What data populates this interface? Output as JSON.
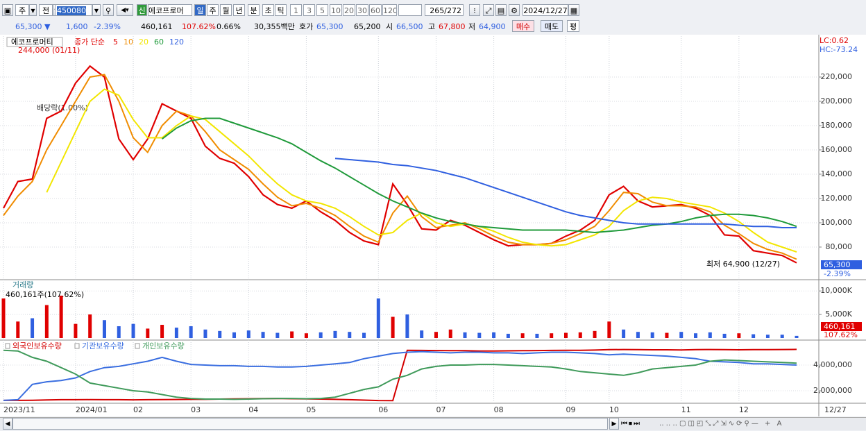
{
  "toolbar": {
    "period_unit": "주",
    "mode": "전",
    "code": "450080",
    "badge": "신",
    "name": "에코프로머",
    "periods": [
      "일",
      "주",
      "월",
      "년",
      "분",
      "초",
      "틱"
    ],
    "intervals": [
      "1",
      "3",
      "5",
      "10",
      "20",
      "30",
      "60",
      "120"
    ],
    "count": "265",
    "total": "/272",
    "date": "2024/12/27"
  },
  "quote": {
    "price": "65,300 ▼",
    "change": "1,600",
    "change_pct": "-2.39%",
    "volume": "460,161",
    "volume_ratio": "107.62%",
    "turnover": "0.66%",
    "amount": "30,355백만",
    "ask_label": "호가",
    "ask": "65,300",
    "bid": "65,200",
    "open_label": "시",
    "open": "66,500",
    "high_label": "고",
    "high": "67,800",
    "low_label": "저",
    "low": "64,900",
    "buy": "매수",
    "sell": "매도",
    "avg": "평"
  },
  "chart_data": [
    {
      "type": "line",
      "title": "에코프로머티",
      "subtitle": "종가 단순",
      "last_date": "12/27",
      "categories": [
        "2023/11",
        null,
        null,
        null,
        null,
        "2024/01",
        null,
        null,
        null,
        "02",
        null,
        null,
        null,
        "03",
        null,
        null,
        null,
        "04",
        null,
        null,
        null,
        "05",
        null,
        null,
        null,
        null,
        "06",
        null,
        null,
        null,
        "07",
        null,
        null,
        null,
        "08",
        null,
        null,
        null,
        null,
        "09",
        null,
        null,
        "10",
        null,
        null,
        null,
        null,
        "11",
        null,
        null,
        null,
        "12",
        null,
        null,
        null,
        null
      ],
      "series": [
        {
          "name": "5",
          "color": "#e00000",
          "values": [
            112000,
            134000,
            136000,
            186000,
            192000,
            215000,
            229000,
            220000,
            169000,
            152000,
            169000,
            198000,
            192000,
            186000,
            163000,
            153000,
            149000,
            138000,
            123000,
            115000,
            112000,
            118000,
            109000,
            102000,
            92000,
            85000,
            82000,
            132000,
            115000,
            95000,
            94000,
            102000,
            98000,
            92000,
            86000,
            81000,
            82000,
            82000,
            83000,
            89000,
            94000,
            102000,
            123000,
            130000,
            118000,
            113000,
            114000,
            115000,
            112000,
            106000,
            90000,
            89000,
            77000,
            75000,
            73000,
            67000
          ]
        },
        {
          "name": "10",
          "color": "#f08c00",
          "values": [
            106000,
            122000,
            134000,
            160000,
            180000,
            200000,
            220000,
            222000,
            200000,
            170000,
            158000,
            180000,
            192000,
            188000,
            175000,
            160000,
            152000,
            144000,
            132000,
            121000,
            114000,
            116000,
            112000,
            106000,
            97000,
            89000,
            84000,
            108000,
            122000,
            105000,
            96000,
            98000,
            100000,
            95000,
            89000,
            84000,
            82000,
            82000,
            83000,
            86000,
            91000,
            97000,
            110000,
            125000,
            124000,
            117000,
            114000,
            114000,
            113000,
            109000,
            98000,
            91000,
            83000,
            78000,
            75000,
            70000
          ]
        },
        {
          "name": "20",
          "color": "#f2e600",
          "values": [
            null,
            null,
            null,
            125000,
            150000,
            175000,
            200000,
            210000,
            205000,
            185000,
            170000,
            170000,
            180000,
            188000,
            185000,
            175000,
            165000,
            155000,
            143000,
            132000,
            123000,
            118000,
            116000,
            112000,
            105000,
            97000,
            90000,
            92000,
            102000,
            108000,
            100000,
            97000,
            99000,
            97000,
            93000,
            88000,
            84000,
            82000,
            81000,
            82000,
            86000,
            90000,
            97000,
            110000,
            118000,
            121000,
            120000,
            117000,
            115000,
            113000,
            108000,
            101000,
            92000,
            84000,
            80000,
            76000
          ]
        },
        {
          "name": "60",
          "color": "#1f9a3a",
          "values": [
            null,
            null,
            null,
            null,
            null,
            null,
            null,
            null,
            null,
            null,
            null,
            169000,
            178000,
            184000,
            186000,
            186000,
            182000,
            178000,
            174000,
            170000,
            165000,
            158000,
            151000,
            145000,
            138000,
            131000,
            124000,
            118000,
            113000,
            108000,
            104000,
            101000,
            99000,
            97000,
            96000,
            95000,
            94000,
            94000,
            94000,
            94000,
            93000,
            92000,
            93000,
            94000,
            96000,
            98000,
            99000,
            101000,
            104000,
            106000,
            107000,
            107000,
            106000,
            104000,
            101000,
            97000
          ]
        },
        {
          "name": "120",
          "color": "#2f5fe0",
          "values": [
            null,
            null,
            null,
            null,
            null,
            null,
            null,
            null,
            null,
            null,
            null,
            null,
            null,
            null,
            null,
            null,
            null,
            null,
            null,
            null,
            null,
            null,
            null,
            153000,
            152000,
            151000,
            150000,
            148000,
            147000,
            145000,
            143000,
            140000,
            137000,
            133000,
            129000,
            125000,
            121000,
            117000,
            113000,
            109000,
            106000,
            104000,
            102000,
            100000,
            99000,
            99000,
            99000,
            99000,
            99000,
            99000,
            99000,
            98000,
            97000,
            97000,
            96000,
            96000
          ]
        }
      ],
      "ylim": [
        53700,
        253700
      ],
      "yticks": [
        {
          "value": 80000,
          "label": "80,000"
        },
        {
          "value": 100000,
          "label": "100,000"
        },
        {
          "value": 120000,
          "label": "120,000"
        },
        {
          "value": 140000,
          "label": "140,000"
        },
        {
          "value": 160000,
          "label": "160,000"
        },
        {
          "value": 180000,
          "label": "180,000"
        },
        {
          "value": 200000,
          "label": "200,000"
        },
        {
          "value": 220000,
          "label": "220,000"
        }
      ],
      "grid": true,
      "annotations": {
        "high": "244,000 (01/11)",
        "dividend": "배당락(1.00%)",
        "low": "최저 64,900 (12/27)",
        "lc": "LC:0.62",
        "hc": "HC:-73.24",
        "last_price": "65,300",
        "last_change": "-2.39%"
      }
    },
    {
      "type": "bar",
      "title": "거래량",
      "summary": "460,161주(107.62%)",
      "last_value": "460,161",
      "last_ratio": "107.62%",
      "values": [
        8400,
        3500,
        4200,
        7000,
        9000,
        3000,
        5000,
        3800,
        2500,
        3000,
        2000,
        2800,
        2200,
        2500,
        1800,
        1500,
        1200,
        1600,
        1300,
        1100,
        1400,
        1000,
        1200,
        1500,
        1300,
        1100,
        8400,
        4500,
        5000,
        1600,
        1300,
        1800,
        1200,
        1100,
        1200,
        900,
        1000,
        900,
        1000,
        1100,
        1200,
        1500,
        3500,
        1800,
        1300,
        1200,
        1100,
        1300,
        1000,
        1200,
        900,
        1000,
        800,
        700,
        700,
        460.161
      ],
      "colors": [
        "#e00000",
        "#e00000",
        "#2f5fe0",
        "#e00000",
        "#e00000",
        "#e00000",
        "#e00000",
        "#2f5fe0",
        "#2f5fe0",
        "#2f5fe0",
        "#e00000",
        "#e00000",
        "#2f5fe0",
        "#2f5fe0",
        "#2f5fe0",
        "#2f5fe0",
        "#2f5fe0",
        "#2f5fe0",
        "#2f5fe0",
        "#2f5fe0",
        "#e00000",
        "#e00000",
        "#2f5fe0",
        "#2f5fe0",
        "#2f5fe0",
        "#2f5fe0",
        "#2f5fe0",
        "#e00000",
        "#2f5fe0",
        "#2f5fe0",
        "#e00000",
        "#e00000",
        "#2f5fe0",
        "#2f5fe0",
        "#2f5fe0",
        "#2f5fe0",
        "#e00000",
        "#2f5fe0",
        "#e00000",
        "#e00000",
        "#e00000",
        "#e00000",
        "#e00000",
        "#2f5fe0",
        "#2f5fe0",
        "#2f5fe0",
        "#e00000",
        "#2f5fe0",
        "#2f5fe0",
        "#2f5fe0",
        "#2f5fe0",
        "#e00000",
        "#2f5fe0",
        "#2f5fe0",
        "#2f5fe0",
        "#2f5fe0"
      ],
      "ylim": [
        0,
        11800
      ],
      "yticks": [
        {
          "value": 5000,
          "label": "5,000K"
        },
        {
          "value": 10000,
          "label": "10,000K"
        }
      ],
      "grid": true
    },
    {
      "type": "line",
      "series": [
        {
          "name": "외국인보유수량",
          "color": "#d40000",
          "values": [
            1250000,
            1250000,
            1260000,
            1280000,
            1300000,
            1300000,
            1310000,
            1300000,
            1300000,
            1290000,
            1300000,
            1310000,
            1320000,
            1330000,
            1330000,
            1350000,
            1360000,
            1380000,
            1390000,
            1400000,
            1380000,
            1370000,
            1350000,
            1330000,
            1300000,
            1270000,
            1240000,
            1230000,
            5150000,
            5140000,
            5130000,
            5120000,
            5120000,
            5100000,
            5100000,
            5110000,
            5120000,
            5130000,
            5140000,
            5150000,
            5150000,
            5170000,
            5200000,
            5210000,
            5200000,
            5190000,
            5190000,
            5180000,
            5200000,
            5210000,
            5200000,
            5190000,
            5200000,
            5200000,
            5210000,
            5220000
          ]
        },
        {
          "name": "기관보유수량",
          "color": "#3a6ee0",
          "values": [
            1250000,
            1300000,
            2500000,
            2700000,
            2800000,
            3000000,
            3500000,
            3800000,
            3900000,
            4100000,
            4300000,
            4600000,
            4300000,
            4050000,
            4000000,
            3950000,
            3950000,
            3900000,
            3900000,
            3850000,
            3850000,
            3900000,
            4000000,
            4100000,
            4200000,
            4500000,
            4700000,
            4900000,
            5000000,
            5050000,
            5000000,
            4950000,
            5000000,
            5000000,
            4950000,
            4950000,
            4900000,
            4950000,
            5000000,
            5000000,
            4950000,
            4900000,
            4800000,
            4850000,
            4800000,
            4750000,
            4700000,
            4600000,
            4500000,
            4300000,
            4250000,
            4200000,
            4100000,
            4100000,
            4050000,
            4000000
          ]
        },
        {
          "name": "개인보유수량",
          "color": "#3f9a5a",
          "values": [
            5150000,
            5100000,
            4600000,
            4300000,
            3800000,
            3300000,
            2600000,
            2400000,
            2200000,
            2000000,
            1900000,
            1700000,
            1500000,
            1400000,
            1350000,
            1350000,
            1330000,
            1350000,
            1380000,
            1400000,
            1400000,
            1380000,
            1400000,
            1500000,
            1800000,
            2100000,
            2300000,
            2900000,
            3200000,
            3700000,
            3900000,
            4000000,
            4000000,
            4050000,
            4050000,
            4000000,
            3950000,
            3900000,
            3850000,
            3700000,
            3500000,
            3400000,
            3300000,
            3200000,
            3400000,
            3700000,
            3800000,
            3900000,
            4000000,
            4300000,
            4400000,
            4350000,
            4300000,
            4250000,
            4200000,
            4150000
          ]
        }
      ],
      "ylim": [
        1081000,
        5784000
      ],
      "yticks": [
        {
          "value": 2000000,
          "label": "2,000,000"
        },
        {
          "value": 4000000,
          "label": "4,000,000"
        }
      ],
      "grid": true
    }
  ]
}
